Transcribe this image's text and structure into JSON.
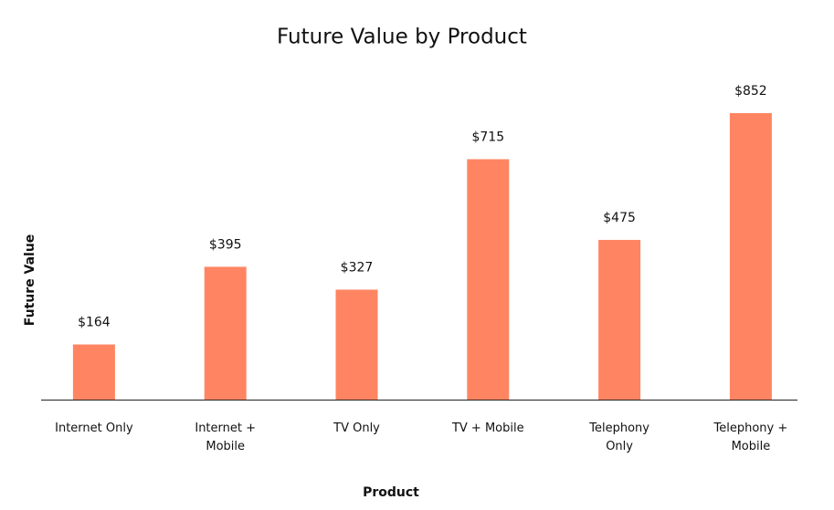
{
  "chart_data": {
    "type": "bar",
    "title": "Future Value by Product",
    "x_label": "Product",
    "y_label": "Future Value",
    "categories": [
      "Internet Only",
      "Internet +\nMobile",
      "TV Only",
      "TV + Mobile",
      "Telephony\nOnly",
      "Telephony +\nMobile"
    ],
    "values": [
      164,
      395,
      327,
      715,
      475,
      852
    ],
    "value_labels": [
      "$164",
      "$395",
      "$327",
      "$715",
      "$475",
      "$852"
    ],
    "color": "#ff8562"
  }
}
